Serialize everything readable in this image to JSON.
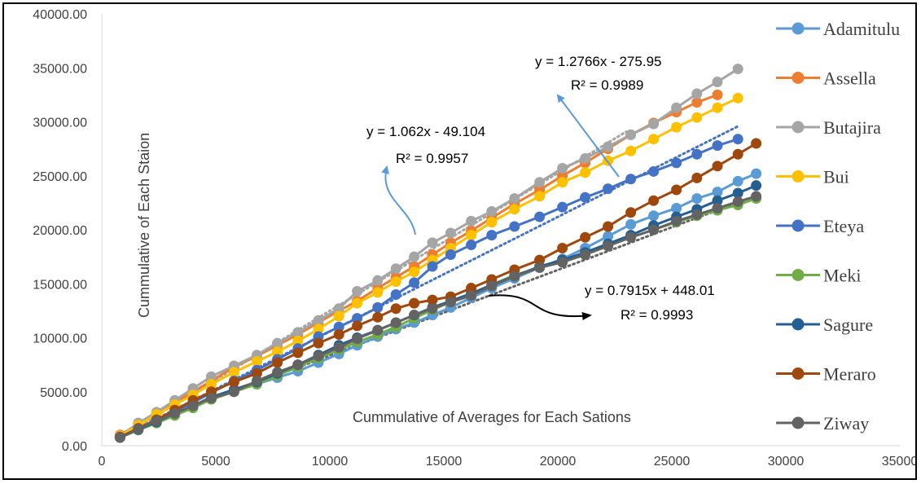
{
  "chart_data": {
    "type": "scatter",
    "title": "",
    "xlabel": "Cummulative of Averages for Each Sations",
    "ylabel": "Cummulative  of Each Staion",
    "xlim": [
      0,
      35000
    ],
    "ylim": [
      0,
      40000
    ],
    "x_ticks": [
      "0",
      "5000",
      "10000",
      "15000",
      "20000",
      "25000",
      "30000",
      "35000"
    ],
    "y_ticks": [
      "0.00",
      "5000.00",
      "10000.00",
      "15000.00",
      "20000.00",
      "25000.00",
      "30000.00",
      "35000.00",
      "40000.00"
    ],
    "x_tick_values": [
      0,
      5000,
      10000,
      15000,
      20000,
      25000,
      30000,
      35000
    ],
    "y_tick_values": [
      0,
      5000,
      10000,
      15000,
      20000,
      25000,
      30000,
      35000,
      40000
    ],
    "grid": {
      "x": false,
      "y": false
    },
    "legend_position": "right",
    "x": [
      800,
      1600,
      2400,
      3200,
      4000,
      4800,
      5800,
      6800,
      7700,
      8600,
      9500,
      10400,
      11200,
      12100,
      12900,
      13700,
      14500,
      15300,
      16200,
      17100,
      18100,
      19200,
      20200,
      21200,
      22200,
      23200,
      24200,
      25200,
      26100,
      27000,
      27900,
      28700
    ],
    "series": [
      {
        "name": "Adamitulu",
        "color": "#5B9BD5",
        "y": [
          800,
          1550,
          2200,
          2900,
          3600,
          4300,
          5100,
          5700,
          6300,
          6900,
          7700,
          8500,
          9300,
          10100,
          10800,
          11400,
          12100,
          12800,
          13700,
          14600,
          15500,
          16500,
          17300,
          18300,
          19400,
          20500,
          21300,
          22000,
          22900,
          23500,
          24500,
          25200
        ]
      },
      {
        "name": "Assella",
        "color": "#ED7D31",
        "y": [
          1000,
          2000,
          3000,
          4000,
          5000,
          6000,
          7300,
          8300,
          9300,
          10300,
          11400,
          12500,
          13400,
          14600,
          15600,
          16600,
          17700,
          18800,
          19900,
          21100,
          22400,
          23700,
          25000,
          26200,
          27500,
          28800,
          29900,
          30900,
          31800,
          32500
        ]
      },
      {
        "name": "Butajira",
        "color": "#A5A5A5",
        "y": [
          900,
          2100,
          3100,
          4200,
          5300,
          6400,
          7400,
          8400,
          9500,
          10500,
          11600,
          12700,
          14300,
          15300,
          16400,
          17500,
          18800,
          19700,
          20800,
          21700,
          22900,
          24400,
          25700,
          26600,
          27700,
          28800,
          29800,
          31300,
          32600,
          33700,
          34900
        ]
      },
      {
        "name": "Bui",
        "color": "#FFC000",
        "y": [
          900,
          1900,
          2900,
          3800,
          4700,
          5700,
          6800,
          7800,
          8700,
          9700,
          10800,
          12000,
          13200,
          14200,
          15200,
          16100,
          17200,
          18300,
          19500,
          20700,
          21900,
          23100,
          24400,
          25300,
          26400,
          27300,
          28400,
          29500,
          30400,
          31300,
          32200
        ]
      },
      {
        "name": "Eteya",
        "color": "#4472C4",
        "y": [
          800,
          1600,
          2400,
          3200,
          4000,
          4900,
          6000,
          7000,
          8000,
          9000,
          10100,
          11000,
          11800,
          12800,
          14000,
          15100,
          16600,
          17700,
          18600,
          19500,
          20300,
          21200,
          22100,
          23000,
          23800,
          24700,
          25400,
          26200,
          27000,
          27800,
          28400
        ]
      },
      {
        "name": "Meki",
        "color": "#70AD47",
        "y": [
          750,
          1450,
          2100,
          2800,
          3500,
          4300,
          5000,
          5700,
          6500,
          7300,
          8100,
          8900,
          9600,
          10300,
          11000,
          11800,
          12600,
          13300,
          14100,
          14900,
          15800,
          16500,
          17000,
          17700,
          18500,
          19300,
          20000,
          20700,
          21300,
          21800,
          22300,
          22900
        ]
      },
      {
        "name": "Sagure",
        "color": "#255E91",
        "y": [
          800,
          1500,
          2200,
          3000,
          3700,
          4500,
          5200,
          5900,
          6700,
          7500,
          8400,
          9300,
          10000,
          10700,
          11400,
          12100,
          12800,
          13400,
          14100,
          14900,
          15700,
          16600,
          17200,
          17900,
          18700,
          19500,
          20400,
          21200,
          21900,
          22700,
          23400,
          24100
        ]
      },
      {
        "name": "Meraro",
        "color": "#9E480E",
        "y": [
          800,
          1600,
          2400,
          3300,
          4200,
          5000,
          5900,
          6700,
          7700,
          8600,
          9500,
          10300,
          11100,
          11900,
          12700,
          13200,
          13500,
          13800,
          14600,
          15400,
          16300,
          17200,
          18300,
          19300,
          20300,
          21600,
          22700,
          23700,
          24800,
          25900,
          27000,
          28000
        ]
      },
      {
        "name": "Ziway",
        "color": "#636363",
        "y": [
          750,
          1550,
          2300,
          3000,
          3700,
          4400,
          5000,
          6000,
          6800,
          7500,
          8300,
          9100,
          9900,
          10700,
          11400,
          12100,
          12700,
          13300,
          13900,
          14800,
          15700,
          16500,
          17000,
          17700,
          18500,
          19300,
          20000,
          20800,
          21400,
          22000,
          22600,
          23100
        ]
      }
    ],
    "trendlines": [
      {
        "slope": 1.062,
        "intercept": -49.104,
        "x_range": [
          800,
          27900
        ],
        "color": "#4472C4"
      },
      {
        "slope": 1.2766,
        "intercept": -275.95,
        "x_range": [
          800,
          23000
        ],
        "color": "#A5A5A5"
      },
      {
        "slope": 0.7915,
        "intercept": 448.01,
        "x_range": [
          800,
          28700
        ],
        "color": "#636363"
      }
    ],
    "annotations": [
      {
        "line1": "y = 1.062x - 49.104",
        "line2": "R² = 0.9957"
      },
      {
        "line1": "y = 1.2766x - 275.95",
        "line2": "R² = 0.9989"
      },
      {
        "line1": "y = 0.7915x + 448.01",
        "line2": "R² = 0.9993"
      }
    ]
  }
}
